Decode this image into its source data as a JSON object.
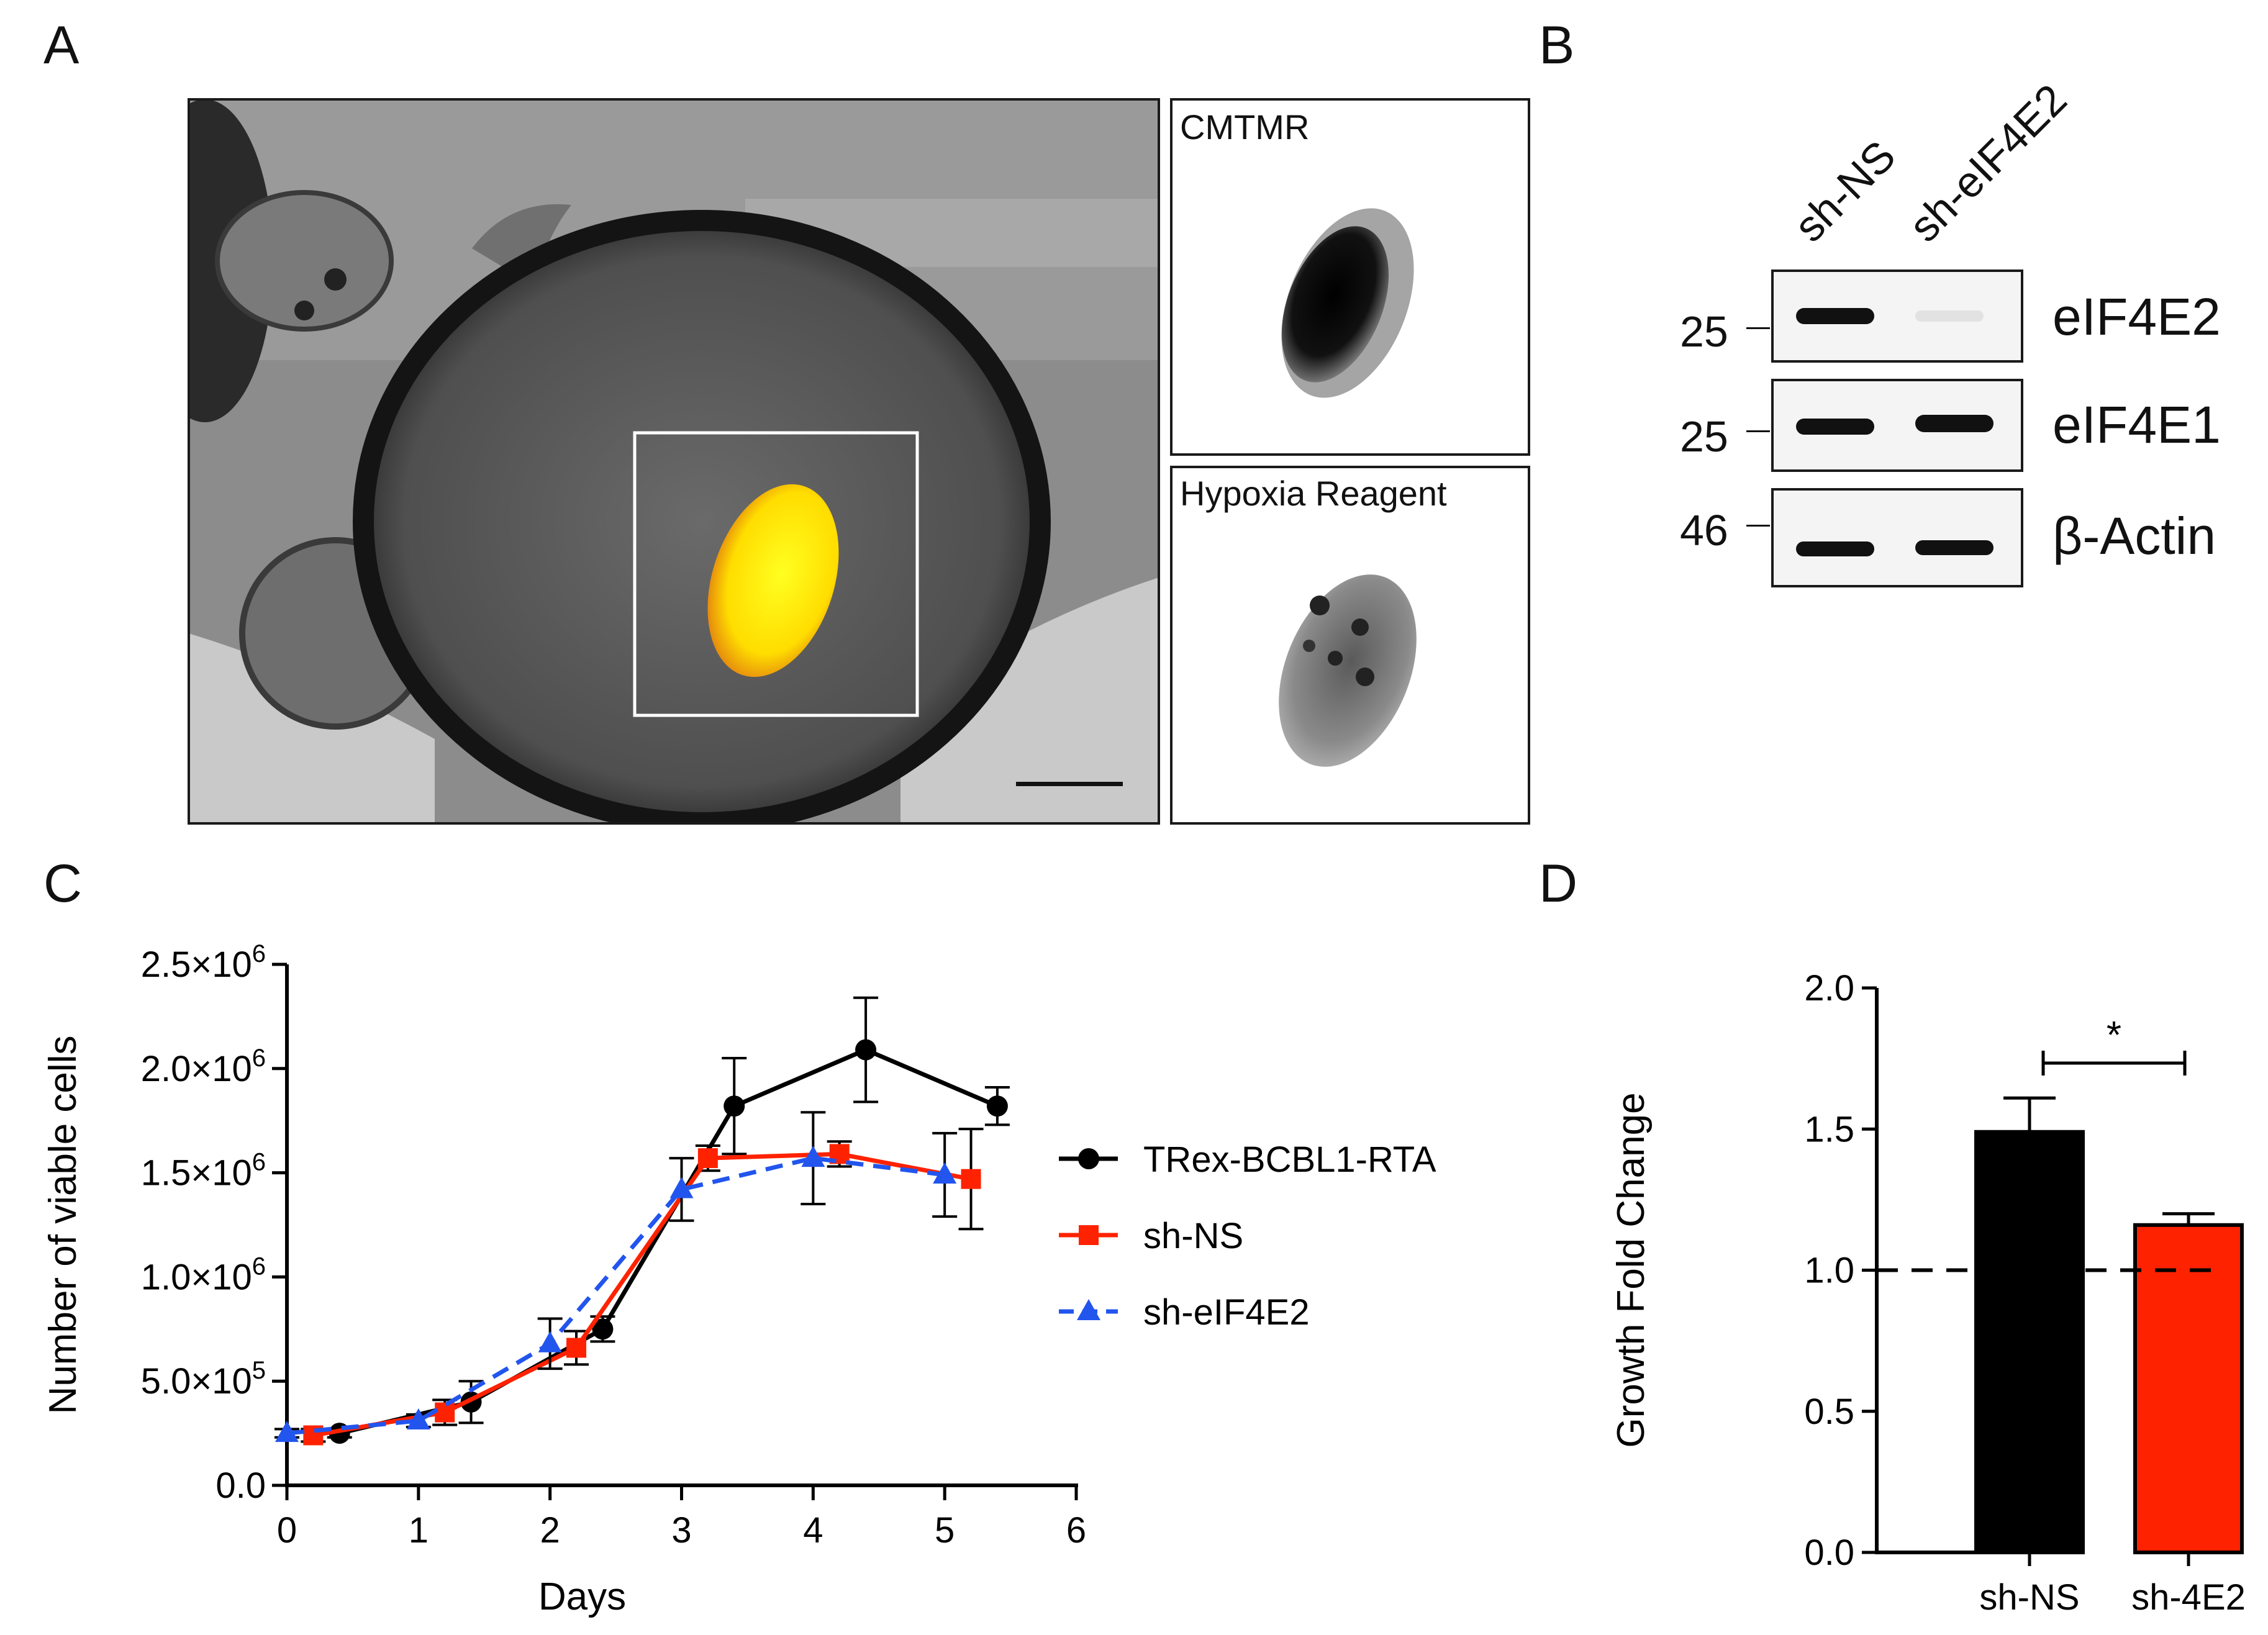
{
  "panels": {
    "a": {
      "letter": "A",
      "inset_top_label": "CMTMR",
      "inset_bottom_label": "Hypoxia Reagent"
    },
    "b": {
      "letter": "B",
      "lanes": [
        "sh-NS",
        "sh-eIF4E2"
      ],
      "rows": [
        {
          "protein": "eIF4E2",
          "mw": "25"
        },
        {
          "protein": "eIF4E1",
          "mw": "25"
        },
        {
          "protein": "β-Actin",
          "mw": "46"
        }
      ]
    },
    "c": {
      "letter": "C"
    },
    "d": {
      "letter": "D"
    }
  },
  "colors": {
    "black": "#000000",
    "red": "#ff2200",
    "blue": "#2255ee",
    "yolk": "#5a5a5a",
    "cell": "#ffee00"
  },
  "chart_data": [
    {
      "id": "C",
      "type": "line",
      "xlabel": "Days",
      "ylabel": "Number of viable cells",
      "xlim": [
        0,
        6
      ],
      "ylim": [
        0,
        2500000
      ],
      "x_ticks": [
        "0",
        "1",
        "2",
        "3",
        "4",
        "5",
        "6"
      ],
      "y_ticks": [
        {
          "mantissa": "0.0",
          "exp": ""
        },
        {
          "mantissa": "5.0×10",
          "exp": "5"
        },
        {
          "mantissa": "1.0×10",
          "exp": "6"
        },
        {
          "mantissa": "1.5×10",
          "exp": "6"
        },
        {
          "mantissa": "2.0×10",
          "exp": "6"
        },
        {
          "mantissa": "2.5×10",
          "exp": "6"
        }
      ],
      "series": [
        {
          "name": "TRex-BCBL1-RTA",
          "color": "#000000",
          "marker": "circle",
          "dash": "solid",
          "x": [
            0.4,
            1.4,
            2.4,
            3.4,
            4.4,
            5.4
          ],
          "y": [
            250000,
            400000,
            750000,
            1820000,
            2090000,
            1820000
          ],
          "err": [
            20000,
            100000,
            60000,
            230000,
            250000,
            90000
          ]
        },
        {
          "name": "sh-NS",
          "color": "#ff2200",
          "marker": "square",
          "dash": "solid",
          "x": [
            0.2,
            1.2,
            2.2,
            3.2,
            4.2,
            5.2
          ],
          "y": [
            240000,
            350000,
            660000,
            1570000,
            1590000,
            1470000
          ],
          "err": [
            30000,
            60000,
            80000,
            60000,
            60000,
            240000
          ]
        },
        {
          "name": "sh-eIF4E2",
          "color": "#2255ee",
          "marker": "triangle",
          "dash": "dashed",
          "x": [
            0,
            1,
            2,
            3,
            4,
            5
          ],
          "y": [
            250000,
            310000,
            680000,
            1420000,
            1570000,
            1490000
          ],
          "err": [
            20000,
            30000,
            120000,
            150000,
            220000,
            200000
          ]
        }
      ]
    },
    {
      "id": "D",
      "type": "bar",
      "ylabel": "Growth Fold Change",
      "ylim": [
        0,
        2.0
      ],
      "y_ticks": [
        "0.0",
        "0.5",
        "1.0",
        "1.5",
        "2.0"
      ],
      "categories": [
        "sh-NS",
        "sh-4E2"
      ],
      "values": [
        1.49,
        1.16
      ],
      "err": [
        0.12,
        0.04
      ],
      "colors": [
        "#000000",
        "#ff2200"
      ],
      "reference_line": 1.0,
      "significance": "*"
    }
  ]
}
